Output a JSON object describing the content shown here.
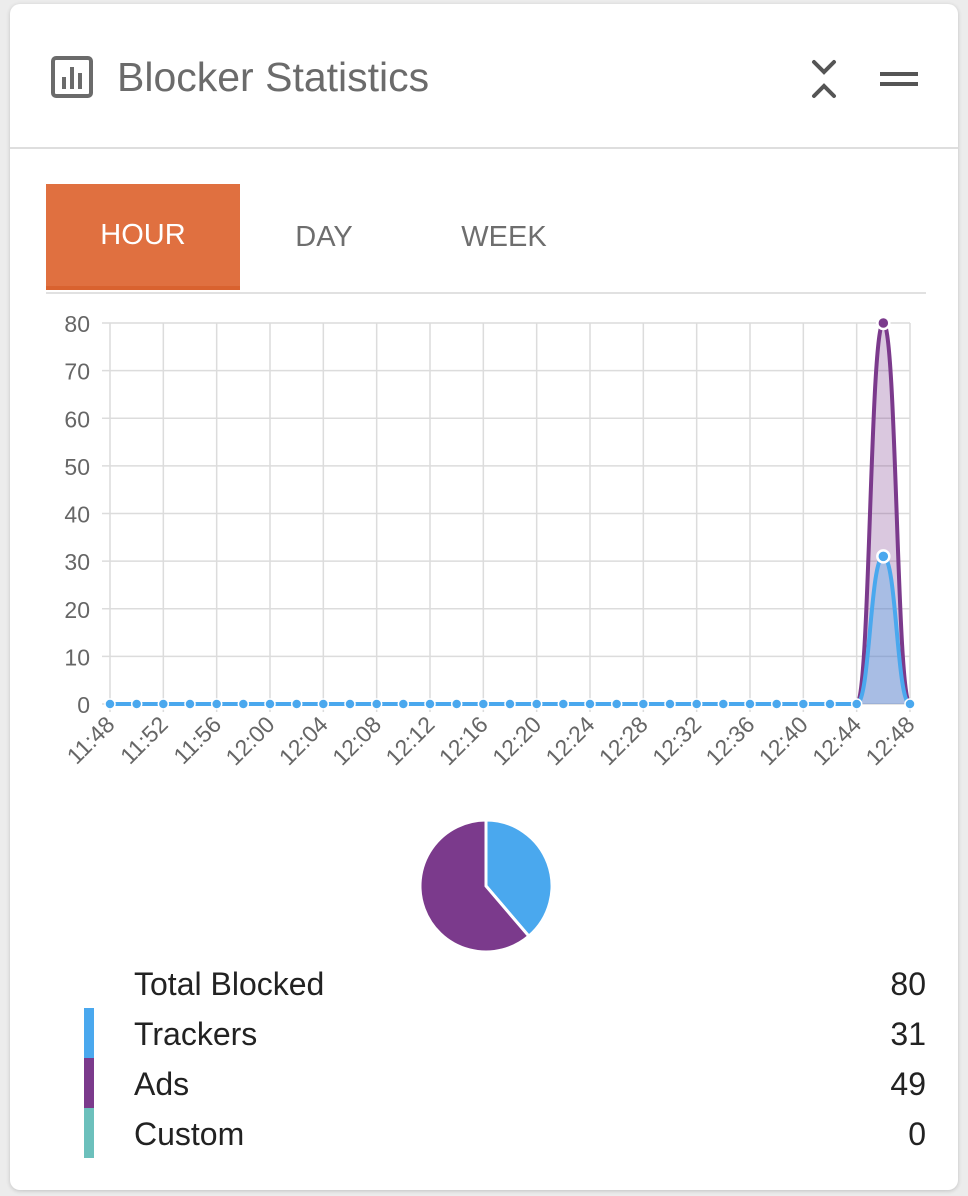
{
  "header": {
    "title": "Blocker Statistics",
    "icon": "bar-chart-icon",
    "collapse_icon": "collapse-arrows-icon",
    "menu_icon": "drag-handle-icon"
  },
  "tabs": [
    {
      "label": "HOUR",
      "active": true
    },
    {
      "label": "DAY",
      "active": false
    },
    {
      "label": "WEEK",
      "active": false
    }
  ],
  "chart_data": {
    "type": "area",
    "categories": [
      "11:48",
      "11:50",
      "11:52",
      "11:54",
      "11:56",
      "11:58",
      "12:00",
      "12:02",
      "12:04",
      "12:06",
      "12:08",
      "12:10",
      "12:12",
      "12:14",
      "12:16",
      "12:18",
      "12:20",
      "12:22",
      "12:24",
      "12:26",
      "12:28",
      "12:30",
      "12:32",
      "12:34",
      "12:36",
      "12:38",
      "12:40",
      "12:42",
      "12:44",
      "12:46",
      "12:48"
    ],
    "tick_labels": [
      "11:48",
      "11:52",
      "11:56",
      "12:00",
      "12:04",
      "12:08",
      "12:12",
      "12:16",
      "12:20",
      "12:24",
      "12:28",
      "12:32",
      "12:36",
      "12:40",
      "12:44",
      "12:48"
    ],
    "series": [
      {
        "name": "Ads",
        "color": "#7b3a8c",
        "values": [
          0,
          0,
          0,
          0,
          0,
          0,
          0,
          0,
          0,
          0,
          0,
          0,
          0,
          0,
          0,
          0,
          0,
          0,
          0,
          0,
          0,
          0,
          0,
          0,
          0,
          0,
          0,
          0,
          0,
          80,
          0
        ]
      },
      {
        "name": "Trackers",
        "color": "#4aa8ee",
        "values": [
          0,
          0,
          0,
          0,
          0,
          0,
          0,
          0,
          0,
          0,
          0,
          0,
          0,
          0,
          0,
          0,
          0,
          0,
          0,
          0,
          0,
          0,
          0,
          0,
          0,
          0,
          0,
          0,
          0,
          31,
          0
        ]
      }
    ],
    "y_ticks": [
      "0",
      "10",
      "20",
      "30",
      "40",
      "50",
      "60",
      "70",
      "80"
    ],
    "ylim": [
      0,
      80
    ],
    "grid": true
  },
  "pie": {
    "slices": [
      {
        "name": "Trackers",
        "value": 31,
        "color": "#4aa8ee"
      },
      {
        "name": "Ads",
        "value": 49,
        "color": "#7b3a8c"
      }
    ]
  },
  "legend": [
    {
      "label": "Total Blocked",
      "value": "80",
      "color": ""
    },
    {
      "label": "Trackers",
      "value": "31",
      "color": "#4aa8ee"
    },
    {
      "label": "Ads",
      "value": "49",
      "color": "#7b3a8c"
    },
    {
      "label": "Custom",
      "value": "0",
      "color": "#6cc0bc"
    }
  ]
}
